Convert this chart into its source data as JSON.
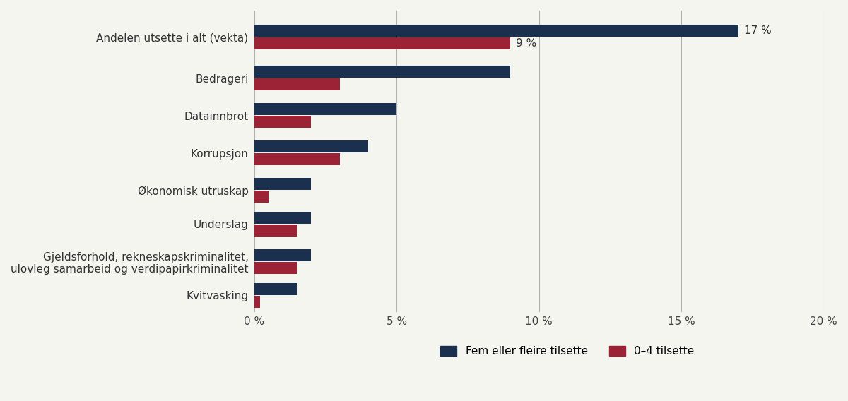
{
  "categories": [
    "Andelen utsette i alt (vekta)",
    "Bedrageri",
    "Datainnbrot",
    "Korrupsjon",
    "Økonomisk utruskap",
    "Underslag",
    "Gjeldsforhold, rekneskapskriminalitet,\nulovleg samarbeid og verdipapirkriminalitet",
    "Kvitvasking"
  ],
  "dark_values": [
    17,
    9,
    5,
    4,
    2,
    2,
    2,
    1.5
  ],
  "red_values": [
    9,
    3,
    2,
    3,
    0.5,
    1.5,
    1.5,
    0.2
  ],
  "dark_color": "#1b2f4e",
  "red_color": "#9b2335",
  "legend": [
    {
      "label": "Fem eller fleire tilsette",
      "color": "#1b2f4e"
    },
    {
      "label": "0–4 tilsette",
      "color": "#9b2335"
    }
  ],
  "xlim": [
    0,
    20
  ],
  "xtick_labels": [
    "0 %",
    "5 %",
    "10 %",
    "15 %",
    "20 %"
  ],
  "xtick_values": [
    0,
    5,
    10,
    15,
    20
  ],
  "grid_color": "#b0b0b0",
  "background_color": "#f5f5f0",
  "annotation_dark": "17 %",
  "annotation_red": "9 %",
  "annotation_fontsize": 11,
  "label_fontsize": 11,
  "tick_fontsize": 11
}
